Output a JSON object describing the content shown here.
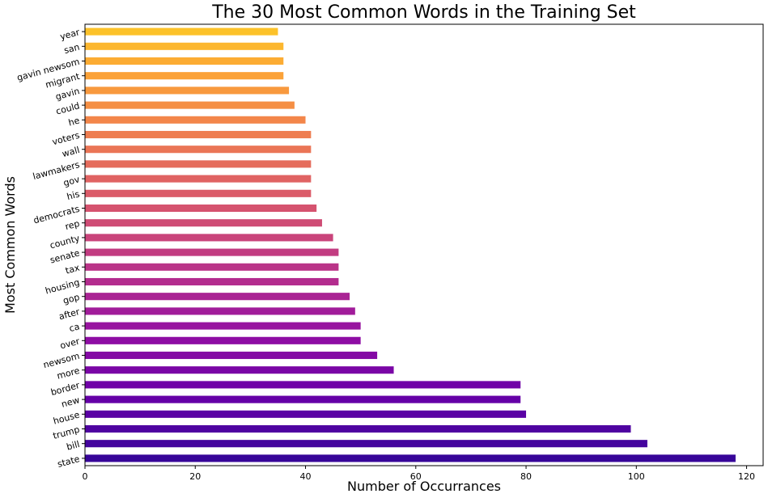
{
  "chart_data": {
    "type": "bar",
    "orientation": "horizontal",
    "title": "The 30 Most Common Words in the Training Set",
    "xlabel": "Number of Occurrances",
    "ylabel": "Most Common Words",
    "xlim": [
      0,
      123
    ],
    "xticks": [
      0,
      20,
      40,
      60,
      80,
      100,
      120
    ],
    "categories": [
      "state",
      "bill",
      "trump",
      "house",
      "new",
      "border",
      "more",
      "newsom",
      "over",
      "ca",
      "after",
      "gop",
      "housing",
      "tax",
      "senate",
      "county",
      "rep",
      "democrats",
      "his",
      "gov",
      "lawmakers",
      "wall",
      "voters",
      "he",
      "could",
      "gavin",
      "migrant",
      "gavin newsom",
      "san",
      "year"
    ],
    "values": [
      118,
      102,
      99,
      80,
      79,
      79,
      56,
      53,
      50,
      50,
      49,
      48,
      46,
      46,
      46,
      45,
      43,
      42,
      41,
      41,
      41,
      41,
      41,
      40,
      38,
      37,
      36,
      36,
      36,
      35
    ],
    "colormap": "plasma",
    "grid": false,
    "legend": "none"
  }
}
